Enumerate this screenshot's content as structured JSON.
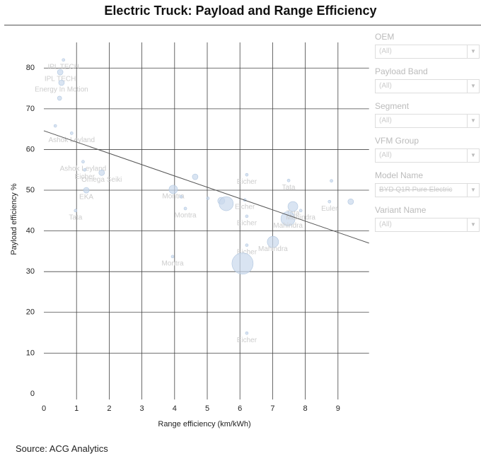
{
  "header": {
    "title": "Electric Truck: Payload and Range Efficiency"
  },
  "chart_data": {
    "type": "scatter",
    "x_label": "Range efficiency (km/kWh)",
    "y_label": "Payload efficiency %",
    "xlim": [
      0,
      9.95
    ],
    "ylim": [
      -1.4,
      86.3
    ],
    "xticks": [
      0,
      1,
      2,
      3,
      4,
      5,
      6,
      7,
      8,
      9
    ],
    "yticks": [
      0,
      10,
      20,
      30,
      40,
      50,
      60,
      70,
      80
    ],
    "grid": true,
    "color": "#c9d9ec",
    "x": [
      0.6,
      0.5,
      0.54,
      0.48,
      0.35,
      0.85,
      1.2,
      1.25,
      1.77,
      1.3,
      0.97,
      3.96,
      4.63,
      4.2,
      4.33,
      5.02,
      5.43,
      5.58,
      6.21,
      6.15,
      6.21,
      6.21,
      6.08,
      3.94,
      7.01,
      7.49,
      7.62,
      7.47,
      7.86,
      8.74,
      8.8,
      9.39,
      6.21
    ],
    "y": [
      82,
      79,
      76.4,
      72.6,
      65.8,
      64,
      57,
      55,
      54.3,
      50,
      45,
      50.2,
      53.3,
      48.4,
      45.5,
      48,
      47.4,
      46.7,
      53.8,
      47.6,
      43.6,
      36.5,
      32,
      33.7,
      37.3,
      52.4,
      46,
      43,
      45,
      47.2,
      52.3,
      47.2,
      14.9
    ],
    "sizes": [
      2,
      4,
      4,
      3,
      2,
      2,
      2,
      2,
      4,
      4,
      2,
      6,
      4,
      2,
      2,
      2,
      5,
      10,
      2,
      2,
      2,
      2,
      15,
      2,
      8,
      2,
      7,
      10,
      2,
      2,
      2,
      4,
      2
    ],
    "labels": [
      "IPL TECH",
      "IPL TECH",
      "Energy In Motion",
      null,
      null,
      "Ashok Leyland",
      "Ashok Leyland",
      "Eicher",
      "Omega Seiki",
      "EKA",
      "Tata",
      "Montra",
      null,
      null,
      "Montra",
      null,
      null,
      null,
      "Eicher",
      "Eicher",
      "Eicher",
      "Eicher",
      null,
      "Montra",
      "Mahindra",
      "Tata",
      "Tata",
      "Mahindra",
      "Mahindra",
      "Euler",
      null,
      null,
      "Eicher"
    ],
    "trendline": {
      "x": [
        0,
        9.95
      ],
      "y": [
        64.6,
        37
      ]
    }
  },
  "filters": [
    {
      "label": "OEM",
      "value": "(All)"
    },
    {
      "label": "Payload Band",
      "value": "(All)"
    },
    {
      "label": "Segment",
      "value": "(All)"
    },
    {
      "label": "VFM Group",
      "value": "(All)"
    },
    {
      "label": "Model Name",
      "value": "BYD Q1R Pure Electric"
    },
    {
      "label": "Variant Name",
      "value": "(All)"
    }
  ],
  "source": "Source: ACG Analytics"
}
